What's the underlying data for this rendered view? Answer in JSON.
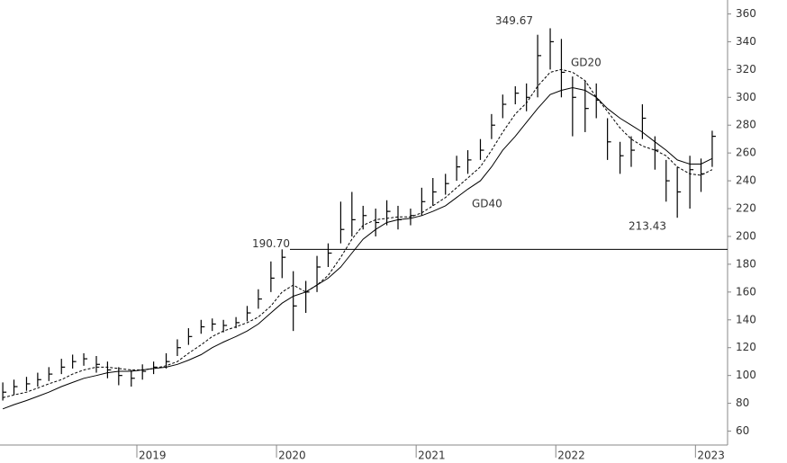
{
  "chart_data": {
    "type": "hlc",
    "x": [
      2018.04,
      2018.12,
      2018.21,
      2018.29,
      2018.37,
      2018.46,
      2018.54,
      2018.62,
      2018.71,
      2018.79,
      2018.87,
      2018.96,
      2019.04,
      2019.12,
      2019.21,
      2019.29,
      2019.37,
      2019.46,
      2019.54,
      2019.62,
      2019.71,
      2019.79,
      2019.87,
      2019.96,
      2020.04,
      2020.12,
      2020.21,
      2020.29,
      2020.37,
      2020.46,
      2020.54,
      2020.62,
      2020.71,
      2020.79,
      2020.87,
      2020.96,
      2021.04,
      2021.12,
      2021.21,
      2021.29,
      2021.37,
      2021.46,
      2021.54,
      2021.62,
      2021.71,
      2021.79,
      2021.87,
      2021.96,
      2022.04,
      2022.12,
      2022.21,
      2022.29,
      2022.37,
      2022.46,
      2022.54,
      2022.62,
      2022.71,
      2022.79,
      2022.87,
      2022.96,
      2023.04,
      2023.12
    ],
    "high": [
      95,
      97,
      99,
      102,
      106,
      112,
      115,
      116,
      114,
      110,
      106,
      104,
      108,
      110,
      116,
      126,
      134,
      140,
      141,
      140,
      142,
      150,
      162,
      182,
      190.7,
      175,
      168,
      186,
      195,
      225,
      232,
      222,
      220,
      226,
      222,
      220,
      235,
      242,
      245,
      258,
      262,
      270,
      288,
      302,
      308,
      310,
      345,
      349.67,
      342,
      315,
      312,
      310,
      285,
      268,
      272,
      295,
      272,
      255,
      250,
      258,
      256,
      276
    ],
    "low": [
      82,
      86,
      89,
      92,
      96,
      101,
      105,
      107,
      102,
      98,
      93,
      92,
      97,
      101,
      105,
      114,
      122,
      130,
      132,
      131,
      134,
      139,
      148,
      160,
      170,
      132,
      145,
      160,
      178,
      195,
      200,
      205,
      200,
      208,
      205,
      208,
      215,
      222,
      230,
      240,
      245,
      255,
      270,
      285,
      295,
      290,
      300,
      320,
      300,
      272,
      275,
      285,
      255,
      245,
      250,
      270,
      248,
      225,
      213.43,
      220,
      232,
      250
    ],
    "close": [
      88,
      92,
      94,
      97,
      101,
      106,
      110,
      112,
      108,
      104,
      100,
      98,
      103,
      106,
      110,
      120,
      128,
      135,
      137,
      136,
      138,
      145,
      155,
      170,
      185,
      150,
      160,
      178,
      188,
      205,
      212,
      215,
      210,
      218,
      212,
      215,
      225,
      232,
      238,
      250,
      255,
      262,
      280,
      295,
      303,
      300,
      330,
      340,
      318,
      300,
      292,
      298,
      268,
      258,
      262,
      285,
      262,
      240,
      232,
      248,
      245,
      272
    ],
    "series": [
      {
        "name": "GD20",
        "color": "#000000",
        "dashed": true,
        "values": [
          84,
          86,
          88,
          91,
          94,
          97,
          101,
          104,
          106,
          106,
          105,
          104,
          104,
          105,
          107,
          110,
          116,
          122,
          128,
          132,
          135,
          138,
          142,
          150,
          160,
          165,
          160,
          165,
          172,
          185,
          198,
          208,
          212,
          213,
          214,
          214,
          217,
          222,
          228,
          235,
          242,
          250,
          262,
          275,
          288,
          296,
          308,
          318,
          320,
          318,
          312,
          300,
          290,
          278,
          270,
          265,
          262,
          258,
          250,
          245,
          244,
          248
        ]
      },
      {
        "name": "GD40",
        "color": "#000000",
        "dashed": false,
        "values": [
          76,
          79,
          82,
          85,
          88,
          92,
          95,
          98,
          100,
          102,
          103,
          103,
          104,
          105,
          106,
          108,
          111,
          115,
          120,
          124,
          128,
          132,
          137,
          145,
          152,
          157,
          160,
          165,
          170,
          178,
          188,
          198,
          205,
          210,
          212,
          213,
          215,
          218,
          222,
          228,
          234,
          240,
          250,
          262,
          272,
          282,
          292,
          302,
          305,
          307,
          305,
          300,
          292,
          285,
          280,
          275,
          268,
          262,
          255,
          252,
          252,
          256
        ]
      }
    ],
    "reference_line": {
      "value": 190.7,
      "label": "190.70"
    },
    "annotations": [
      {
        "value": 349.67,
        "label": "349.67"
      },
      {
        "value": 213.43,
        "label": "213.43"
      }
    ],
    "xlim": [
      2018.02,
      2023.23
    ],
    "xticks": [
      2019,
      2020,
      2021,
      2022,
      2023
    ],
    "ylim": [
      50,
      370
    ],
    "yticks": [
      60,
      80,
      100,
      120,
      140,
      160,
      180,
      200,
      220,
      240,
      260,
      280,
      300,
      320,
      340,
      360
    ],
    "grid": false,
    "color": "#000000"
  }
}
